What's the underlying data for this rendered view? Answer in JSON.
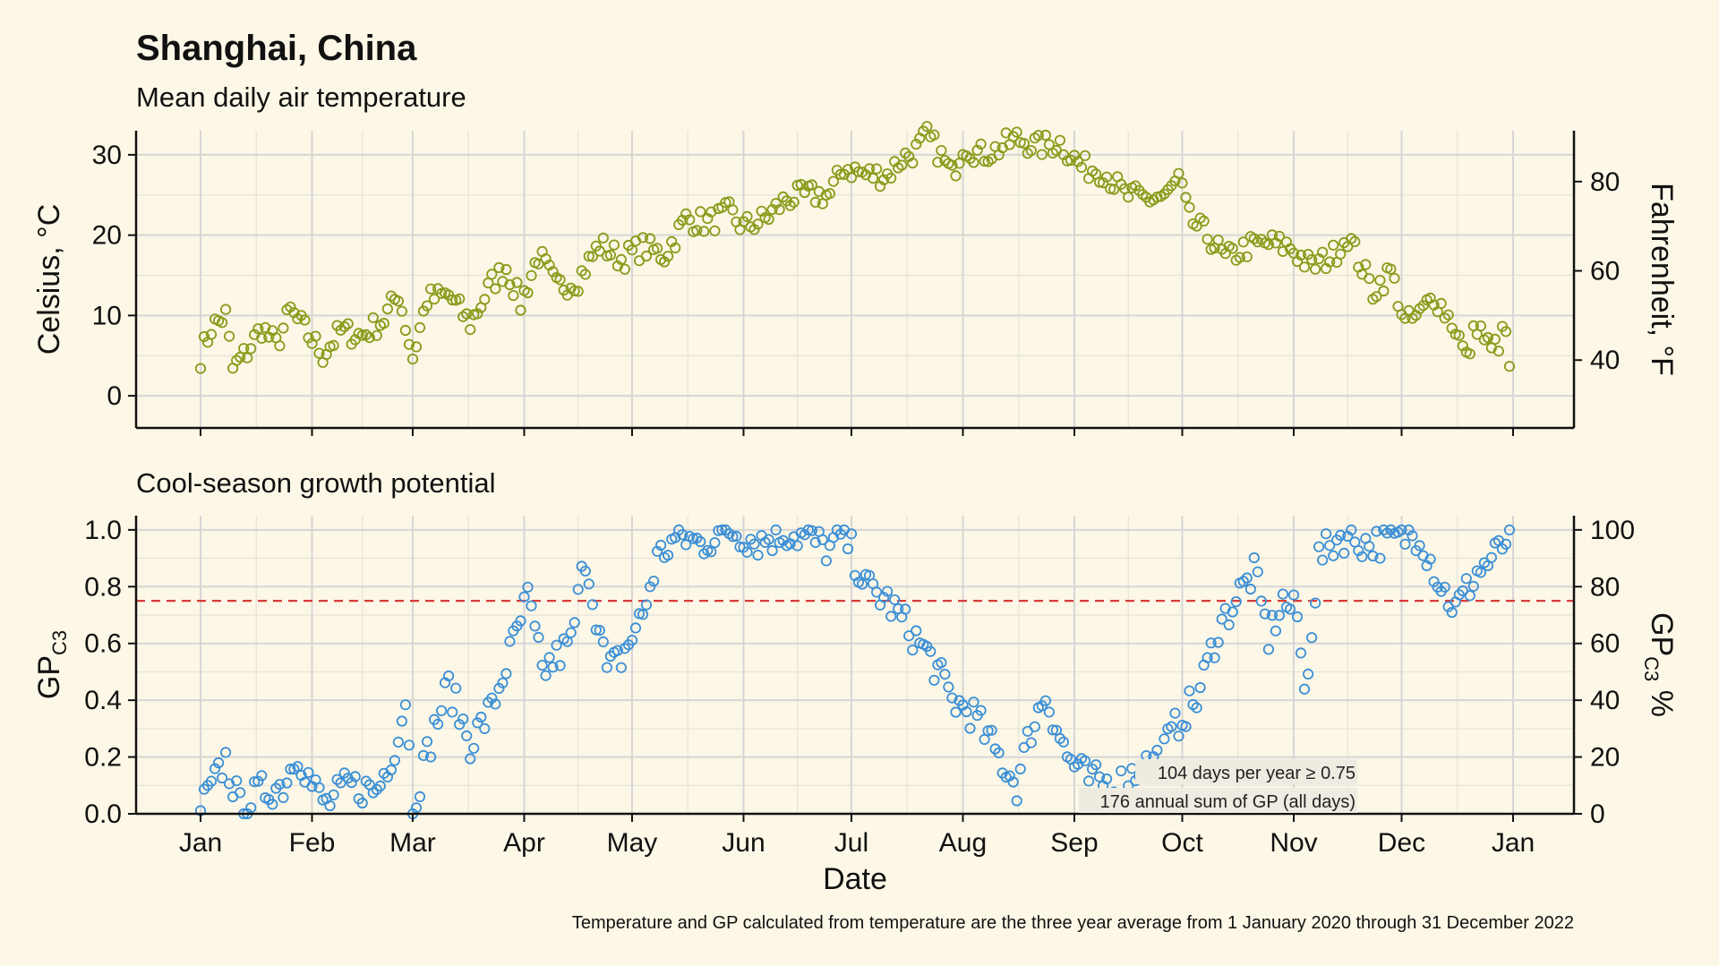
{
  "title": "Shanghai, China",
  "footnote": "Temperature and GP calculated from temperature are the three year average from 1 January 2020 through 31 December 2022",
  "colors": {
    "temp_marker": "#8a9a1a",
    "gp_marker": "#3b8fd6",
    "threshold_line": "#d93b3b",
    "background": "#fcf7e6"
  },
  "chart_data": [
    {
      "type": "scatter",
      "subtitle": "Mean daily air temperature",
      "ylabel_left": "Celsius, °C",
      "ylabel_right": "Fahrenheit, °F",
      "ylim": [
        -4,
        33
      ],
      "yticks_left": [
        0,
        10,
        20,
        30
      ],
      "yticks_right": [
        40,
        60,
        80
      ],
      "xticks": [
        "Jan",
        "Feb",
        "Mar",
        "Apr",
        "May",
        "Jun",
        "Jul",
        "Aug",
        "Sep",
        "Oct",
        "Nov",
        "Dec",
        "Jan"
      ],
      "grid": true,
      "series": [
        {
          "marker": "open-circle",
          "x_note": "day of year (1 = 1 Jan)",
          "anchors": [
            [
              1,
              4.9
            ],
            [
              4,
              8.5
            ],
            [
              8,
              10.0
            ],
            [
              10,
              3.3
            ],
            [
              14,
              5.5
            ],
            [
              18,
              8.5
            ],
            [
              22,
              6.3
            ],
            [
              26,
              10.5
            ],
            [
              30,
              8.2
            ],
            [
              35,
              5.2
            ],
            [
              40,
              8.0
            ],
            [
              46,
              7.5
            ],
            [
              52,
              9.5
            ],
            [
              56,
              12.8
            ],
            [
              60,
              4.8
            ],
            [
              64,
              12.0
            ],
            [
              70,
              12.5
            ],
            [
              76,
              9.0
            ],
            [
              82,
              14.0
            ],
            [
              86,
              16.0
            ],
            [
              90,
              11.5
            ],
            [
              95,
              17.5
            ],
            [
              100,
              13.5
            ],
            [
              106,
              14.5
            ],
            [
              112,
              18.8
            ],
            [
              118,
              17.0
            ],
            [
              124,
              18.5
            ],
            [
              130,
              17.5
            ],
            [
              136,
              22.0
            ],
            [
              142,
              21.5
            ],
            [
              148,
              22.8
            ],
            [
              152,
              21.0
            ],
            [
              158,
              22.0
            ],
            [
              164,
              24.5
            ],
            [
              170,
              25.0
            ],
            [
              176,
              25.0
            ],
            [
              180,
              28.5
            ],
            [
              186,
              27.5
            ],
            [
              192,
              27.5
            ],
            [
              196,
              29.5
            ],
            [
              200,
              30.5
            ],
            [
              203,
              32.3
            ],
            [
              206,
              30.5
            ],
            [
              210,
              27.5
            ],
            [
              213,
              31.3
            ],
            [
              218,
              30.0
            ],
            [
              222,
              30.5
            ],
            [
              228,
              32.0
            ],
            [
              234,
              31.0
            ],
            [
              240,
              31.5
            ],
            [
              246,
              28.5
            ],
            [
              252,
              28.0
            ],
            [
              258,
              25.0
            ],
            [
              264,
              24.5
            ],
            [
              270,
              25.0
            ],
            [
              273,
              27.0
            ],
            [
              276,
              22.0
            ],
            [
              282,
              19.5
            ],
            [
              286,
              17.0
            ],
            [
              292,
              18.5
            ],
            [
              298,
              19.0
            ],
            [
              304,
              18.5
            ],
            [
              310,
              16.0
            ],
            [
              316,
              17.5
            ],
            [
              320,
              20.0
            ],
            [
              324,
              16.0
            ],
            [
              327,
              13.0
            ],
            [
              332,
              15.5
            ],
            [
              336,
              9.0
            ],
            [
              340,
              10.0
            ],
            [
              344,
              12.5
            ],
            [
              350,
              8.5
            ],
            [
              353,
              4.5
            ],
            [
              356,
              9.0
            ],
            [
              360,
              5.5
            ],
            [
              364,
              8.0
            ],
            [
              365,
              2.7
            ]
          ],
          "amplitude_note": "daily values scatter ±1.5 °C around the seasonal curve"
        }
      ]
    },
    {
      "type": "scatter",
      "subtitle": "Cool-season growth potential",
      "ylabel_left_main": "GP",
      "ylabel_left_sub": "C3",
      "ylabel_right_main": "GP",
      "ylabel_right_sub": "C3",
      "ylabel_right_unit": " %",
      "xlabel": "Date",
      "ylim": [
        0,
        1.05
      ],
      "yticks_left": [
        "0.0",
        "0.2",
        "0.4",
        "0.6",
        "0.8",
        "1.0"
      ],
      "yticks_right": [
        "0",
        "20",
        "40",
        "60",
        "80",
        "100"
      ],
      "xticks": [
        "Jan",
        "Feb",
        "Mar",
        "Apr",
        "May",
        "Jun",
        "Jul",
        "Aug",
        "Sep",
        "Oct",
        "Nov",
        "Dec",
        "Jan"
      ],
      "threshold": 0.75,
      "grid": true,
      "annotations": [
        "104 days per year ≥ 0.75",
        "176 annual sum of GP (all days)"
      ],
      "series": [
        {
          "marker": "open-circle",
          "x_note": "day of year (1 = 1 Jan)",
          "anchors": [
            [
              1,
              0.02
            ],
            [
              5,
              0.11
            ],
            [
              8,
              0.19
            ],
            [
              12,
              0.02
            ],
            [
              18,
              0.08
            ],
            [
              24,
              0.1
            ],
            [
              28,
              0.22
            ],
            [
              32,
              0.1
            ],
            [
              36,
              0.03
            ],
            [
              42,
              0.1
            ],
            [
              50,
              0.08
            ],
            [
              56,
              0.27
            ],
            [
              58,
              0.42
            ],
            [
              60,
              0.03
            ],
            [
              66,
              0.3
            ],
            [
              70,
              0.45
            ],
            [
              76,
              0.25
            ],
            [
              82,
              0.37
            ],
            [
              88,
              0.6
            ],
            [
              92,
              0.76
            ],
            [
              96,
              0.5
            ],
            [
              104,
              0.6
            ],
            [
              108,
              0.91
            ],
            [
              114,
              0.5
            ],
            [
              118,
              0.55
            ],
            [
              124,
              0.7
            ],
            [
              128,
              0.9
            ],
            [
              134,
              0.98
            ],
            [
              140,
              0.95
            ],
            [
              148,
              1.0
            ],
            [
              156,
              0.96
            ],
            [
              164,
              0.99
            ],
            [
              170,
              0.97
            ],
            [
              176,
              0.93
            ],
            [
              180,
              0.99
            ],
            [
              186,
              0.8
            ],
            [
              192,
              0.75
            ],
            [
              198,
              0.65
            ],
            [
              204,
              0.55
            ],
            [
              210,
              0.4
            ],
            [
              216,
              0.35
            ],
            [
              222,
              0.22
            ],
            [
              228,
              0.1
            ],
            [
              232,
              0.3
            ],
            [
              236,
              0.42
            ],
            [
              242,
              0.2
            ],
            [
              248,
              0.12
            ],
            [
              256,
              0.1
            ],
            [
              262,
              0.16
            ],
            [
              268,
              0.2
            ],
            [
              274,
              0.35
            ],
            [
              278,
              0.4
            ],
            [
              284,
              0.65
            ],
            [
              290,
              0.78
            ],
            [
              294,
              0.85
            ],
            [
              298,
              0.62
            ],
            [
              302,
              0.75
            ],
            [
              306,
              0.7
            ],
            [
              308,
              0.42
            ],
            [
              312,
              0.9
            ],
            [
              318,
              0.98
            ],
            [
              326,
              0.95
            ],
            [
              334,
              0.97
            ],
            [
              340,
              0.99
            ],
            [
              346,
              0.8
            ],
            [
              350,
              0.72
            ],
            [
              356,
              0.85
            ],
            [
              362,
              0.92
            ],
            [
              365,
              0.99
            ]
          ],
          "amplitude_note": "daily values scatter around the seasonal curve"
        }
      ]
    }
  ]
}
